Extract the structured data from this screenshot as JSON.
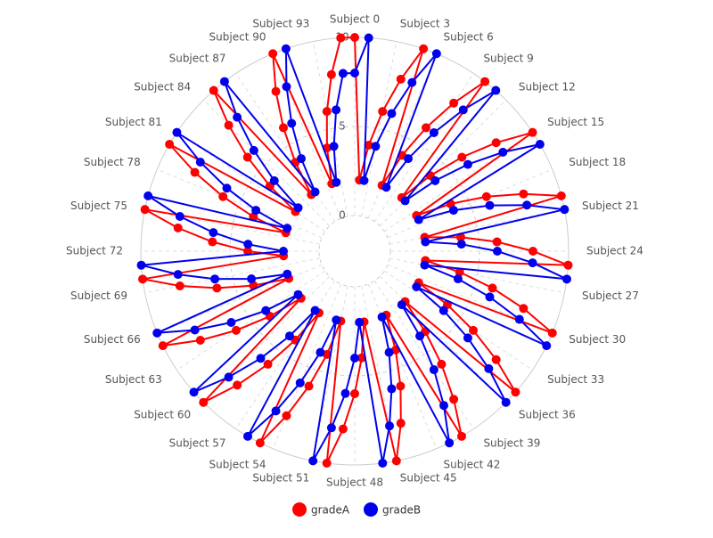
{
  "chart_data": {
    "type": "radar",
    "categories": [
      "Subject 0",
      null,
      null,
      "Subject 3",
      null,
      null,
      "Subject 6",
      null,
      null,
      "Subject 9",
      null,
      null,
      "Subject 12",
      null,
      null,
      "Subject 15",
      null,
      null,
      "Subject 18",
      null,
      null,
      "Subject 21",
      null,
      null,
      "Subject 24",
      null,
      null,
      "Subject 27",
      null,
      null,
      "Subject 30",
      null,
      null,
      "Subject 33",
      null,
      null,
      "Subject 36",
      null,
      null,
      "Subject 39",
      null,
      null,
      "Subject 42",
      null,
      null,
      "Subject 45",
      null,
      null,
      "Subject 48",
      null,
      null,
      "Subject 51",
      null,
      null,
      "Subject 54",
      null,
      null,
      "Subject 57",
      null,
      null,
      "Subject 60",
      null,
      null,
      "Subject 63",
      null,
      null,
      "Subject 66",
      null,
      null,
      "Subject 69",
      null,
      null,
      "Subject 72",
      null,
      null,
      "Subject 75",
      null,
      null,
      "Subject 78",
      null,
      null,
      "Subject 81",
      null,
      null,
      "Subject 84",
      null,
      null,
      "Subject 87",
      null,
      null,
      "Subject 90",
      null,
      null,
      "Subject 93",
      null,
      null
    ],
    "series": [
      {
        "name": "gradeA",
        "color": "#ff0000",
        "values": [
          10,
          2,
          4,
          6,
          8,
          10,
          2,
          4,
          6,
          8,
          10,
          2,
          4,
          6,
          8,
          10,
          2,
          4,
          6,
          8,
          10,
          2,
          4,
          6,
          8,
          10,
          2,
          4,
          6,
          8,
          10,
          2,
          4,
          6,
          8,
          10,
          2,
          4,
          6,
          8,
          10,
          2,
          4,
          6,
          8,
          10,
          2,
          4,
          6,
          8,
          10,
          2,
          4,
          6,
          8,
          10,
          2,
          4,
          6,
          8,
          10,
          2,
          4,
          6,
          8,
          10,
          2,
          4,
          6,
          8,
          10,
          2,
          4,
          6,
          8,
          10,
          2,
          4,
          6,
          8,
          10,
          2,
          4,
          6,
          8,
          10,
          2,
          4,
          6,
          8,
          10,
          2,
          4,
          6,
          8,
          10
        ]
      },
      {
        "name": "gradeB",
        "color": "#0000ee",
        "values": [
          8,
          10,
          2,
          4,
          6,
          8,
          10,
          2,
          4,
          6,
          8,
          10,
          2,
          4,
          6,
          8,
          10,
          2,
          4,
          6,
          8,
          10,
          2,
          4,
          6,
          8,
          10,
          2,
          4,
          6,
          8,
          10,
          2,
          4,
          6,
          8,
          10,
          2,
          4,
          6,
          8,
          10,
          2,
          4,
          6,
          8,
          10,
          2,
          4,
          6,
          8,
          10,
          2,
          4,
          6,
          8,
          10,
          2,
          4,
          6,
          8,
          10,
          2,
          4,
          6,
          8,
          10,
          2,
          4,
          6,
          8,
          10,
          2,
          4,
          6,
          8,
          10,
          2,
          4,
          6,
          8,
          10,
          2,
          4,
          6,
          8,
          10,
          2,
          4,
          6,
          8,
          10,
          2,
          4,
          6,
          8
        ]
      }
    ],
    "rlim": [
      0,
      10
    ],
    "rticks": [
      0,
      5,
      10
    ],
    "grid": true,
    "legend": "bottom"
  }
}
